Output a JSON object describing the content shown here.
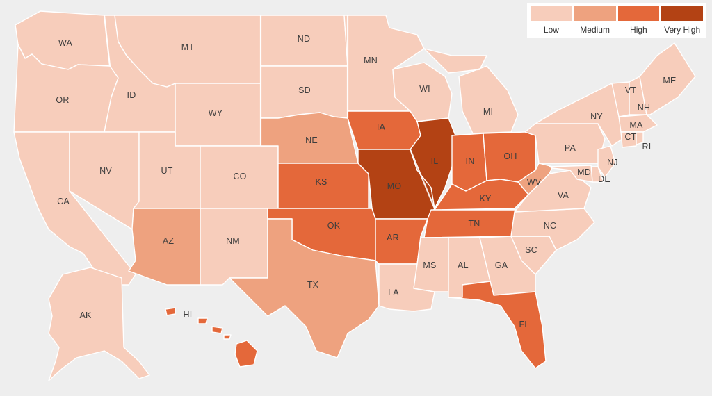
{
  "legend": {
    "items": [
      {
        "key": "low",
        "label": "Low",
        "color": "#f7cdbb"
      },
      {
        "key": "medium",
        "label": "Medium",
        "color": "#eea27f"
      },
      {
        "key": "high",
        "label": "High",
        "color": "#e4683a"
      },
      {
        "key": "very_high",
        "label": "Very High",
        "color": "#b34214"
      }
    ]
  },
  "background_color": "#eeeeee",
  "state_labels": {
    "WA": "WA",
    "OR": "OR",
    "CA": "CA",
    "ID": "ID",
    "NV": "NV",
    "MT": "MT",
    "WY": "WY",
    "UT": "UT",
    "AZ": "AZ",
    "CO": "CO",
    "NM": "NM",
    "ND": "ND",
    "SD": "SD",
    "NE": "NE",
    "KS": "KS",
    "OK": "OK",
    "TX": "TX",
    "MN": "MN",
    "IA": "IA",
    "MO": "MO",
    "AR": "AR",
    "LA": "LA",
    "WI": "WI",
    "IL": "IL",
    "MI": "MI",
    "IN": "IN",
    "OH": "OH",
    "KY": "KY",
    "TN": "TN",
    "MS": "MS",
    "AL": "AL",
    "GA": "GA",
    "FL": "FL",
    "SC": "SC",
    "NC": "NC",
    "VA": "VA",
    "WV": "WV",
    "PA": "PA",
    "NY": "NY",
    "VT": "VT",
    "NH": "NH",
    "ME": "ME",
    "MA": "MA",
    "CT": "CT",
    "RI": "RI",
    "NJ": "NJ",
    "DE": "DE",
    "MD": "MD",
    "AK": "AK",
    "HI": "HI"
  },
  "state_levels": {
    "WA": "low",
    "OR": "low",
    "CA": "low",
    "ID": "low",
    "NV": "low",
    "MT": "low",
    "WY": "low",
    "UT": "low",
    "AZ": "medium",
    "CO": "low",
    "NM": "low",
    "ND": "low",
    "SD": "low",
    "NE": "medium",
    "KS": "high",
    "OK": "high",
    "TX": "medium",
    "MN": "low",
    "IA": "high",
    "MO": "very_high",
    "AR": "high",
    "LA": "low",
    "WI": "low",
    "IL": "very_high",
    "MI": "low",
    "IN": "high",
    "OH": "high",
    "KY": "high",
    "TN": "high",
    "MS": "low",
    "AL": "low",
    "GA": "low",
    "FL": "high",
    "SC": "low",
    "NC": "low",
    "VA": "low",
    "WV": "medium",
    "PA": "low",
    "NY": "low",
    "VT": "low",
    "NH": "low",
    "ME": "low",
    "MA": "low",
    "CT": "low",
    "RI": "low",
    "NJ": "low",
    "DE": "low",
    "MD": "low",
    "AK": "low",
    "HI": "high"
  }
}
